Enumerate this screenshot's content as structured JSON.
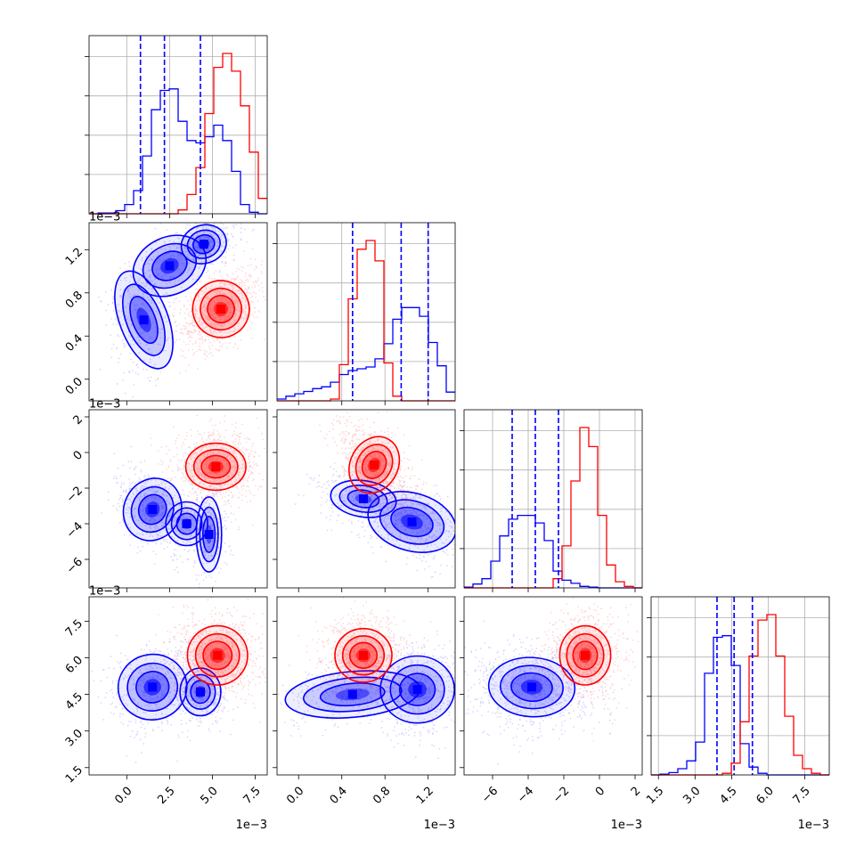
{
  "chart_data": {
    "type": "corner",
    "grid": true,
    "series": [
      {
        "color": "#0000ff",
        "quantiles_dashed": true
      },
      {
        "color": "#ff0000",
        "quantiles_dashed": false
      }
    ],
    "params": [
      {
        "ticks": [
          "0.0",
          "2.5",
          "5.0",
          "7.5"
        ],
        "tick_values": [
          0.0,
          2.5,
          5.0,
          7.5
        ],
        "range": [
          -2.2,
          8.2
        ],
        "offset": "1e−3"
      },
      {
        "ticks": [
          "0.0",
          "0.4",
          "0.8",
          "1.2"
        ],
        "tick_values": [
          0.0,
          0.4,
          0.8,
          1.2
        ],
        "range": [
          -0.2,
          1.45
        ],
        "offset": "1e−3"
      },
      {
        "ticks": [
          "−6",
          "−4",
          "−2",
          "0",
          "2"
        ],
        "tick_values": [
          -6,
          -4,
          -2,
          0,
          2
        ],
        "range": [
          -7.6,
          2.4
        ],
        "offset": "1e−3"
      },
      {
        "ticks": [
          "1.5",
          "3.0",
          "4.5",
          "6.0",
          "7.5"
        ],
        "tick_values": [
          1.5,
          3.0,
          4.5,
          6.0,
          7.5
        ],
        "range": [
          1.2,
          8.5
        ],
        "offset": "1e−3"
      }
    ],
    "marginals": [
      {
        "param": 0,
        "blue": {
          "edges_start": -2.2,
          "bin": 0.52,
          "counts": [
            0,
            1,
            1,
            4,
            12,
            30,
            75,
            135,
            160,
            162,
            120,
            95,
            92,
            100,
            115,
            95,
            55,
            12,
            2,
            0
          ]
        },
        "red": {
          "edges_start": -2.2,
          "bin": 0.52,
          "counts": [
            0,
            0,
            0,
            0,
            0,
            0,
            0,
            0,
            0,
            0,
            5,
            25,
            60,
            130,
            190,
            208,
            185,
            140,
            80,
            20
          ]
        },
        "blue_quantiles": [
          0.8,
          2.2,
          4.3
        ]
      },
      {
        "param": 1,
        "blue": {
          "edges_start": -0.2,
          "bin": 0.0825,
          "counts": [
            3,
            8,
            12,
            16,
            21,
            24,
            32,
            45,
            52,
            55,
            58,
            72,
            98,
            140,
            160,
            160,
            145,
            100,
            60,
            15
          ]
        },
        "red": {
          "edges_start": -0.2,
          "bin": 0.0825,
          "counts": [
            0,
            0,
            0,
            0,
            0,
            0,
            3,
            62,
            175,
            260,
            275,
            240,
            65,
            8,
            0,
            0,
            0,
            0,
            0,
            0
          ]
        },
        "blue_quantiles": [
          0.5,
          0.95,
          1.2
        ]
      },
      {
        "param": 2,
        "blue": {
          "edges_start": -7.6,
          "bin": 0.5,
          "counts": [
            1,
            5,
            12,
            35,
            68,
            90,
            95,
            95,
            85,
            62,
            22,
            10,
            6,
            2,
            1,
            0,
            0,
            0,
            0,
            0
          ]
        },
        "red": {
          "edges_start": -7.6,
          "bin": 0.5,
          "counts": [
            0,
            0,
            0,
            0,
            0,
            0,
            0,
            0,
            0,
            0,
            12,
            55,
            140,
            210,
            185,
            95,
            30,
            8,
            2,
            0
          ]
        },
        "blue_quantiles": [
          -4.9,
          -3.6,
          -2.3
        ]
      },
      {
        "param": 3,
        "blue": {
          "edges_start": 1.2,
          "bin": 0.365,
          "counts": [
            0,
            1,
            3,
            8,
            18,
            42,
            130,
            176,
            178,
            140,
            40,
            10,
            2,
            0,
            0,
            0,
            0,
            0,
            0,
            0
          ]
        },
        "red": {
          "edges_start": 1.2,
          "bin": 0.365,
          "counts": [
            0,
            0,
            0,
            0,
            0,
            0,
            0,
            0,
            2,
            15,
            68,
            152,
            198,
            205,
            152,
            75,
            25,
            8,
            2,
            0
          ]
        },
        "blue_quantiles": [
          3.9,
          4.6,
          5.35
        ]
      }
    ],
    "joint": [
      {
        "row": 1,
        "col": 0,
        "blue": [
          {
            "x": 1.0,
            "y": 0.55,
            "sx": 0.65,
            "sy": 0.22,
            "w": 0.3,
            "r": 0.2
          },
          {
            "x": 2.5,
            "y": 1.05,
            "sx": 1.0,
            "sy": 0.12,
            "w": 0.35,
            "r": 0.7
          },
          {
            "x": 4.5,
            "y": 1.25,
            "sx": 0.6,
            "sy": 0.08,
            "w": 0.35,
            "r": 0.4
          }
        ],
        "red": [
          {
            "x": 5.5,
            "y": 0.65,
            "sx": 0.75,
            "sy": 0.12,
            "w": 1.0,
            "r": 0.5
          }
        ]
      },
      {
        "row": 2,
        "col": 0,
        "blue": [
          {
            "x": 1.5,
            "y": -3.2,
            "sx": 0.7,
            "sy": 0.75,
            "w": 0.55,
            "r": -0.5
          },
          {
            "x": 3.5,
            "y": -4.0,
            "sx": 0.6,
            "sy": 0.6,
            "w": 0.2,
            "r": 0.0
          },
          {
            "x": 4.8,
            "y": -4.6,
            "sx": 0.35,
            "sy": 1.0,
            "w": 0.25,
            "r": 0.0
          }
        ],
        "red": [
          {
            "x": 5.2,
            "y": -0.8,
            "sx": 0.8,
            "sy": 0.6,
            "w": 1.0,
            "r": 0.0
          }
        ]
      },
      {
        "row": 2,
        "col": 1,
        "blue": [
          {
            "x": 0.6,
            "y": -2.6,
            "sx": 0.15,
            "sy": 0.5,
            "w": 0.3,
            "r": -0.3
          },
          {
            "x": 1.05,
            "y": -3.9,
            "sx": 0.18,
            "sy": 0.7,
            "w": 0.7,
            "r": -0.5
          }
        ],
        "red": [
          {
            "x": 0.7,
            "y": -0.7,
            "sx": 0.1,
            "sy": 0.75,
            "w": 1.0,
            "r": -0.5
          }
        ]
      },
      {
        "row": 3,
        "col": 0,
        "blue": [
          {
            "x": 1.5,
            "y": 4.8,
            "sx": 0.9,
            "sy": 0.6,
            "w": 0.55,
            "r": 0.2
          },
          {
            "x": 4.3,
            "y": 4.6,
            "sx": 0.55,
            "sy": 0.45,
            "w": 0.45,
            "r": 0.0
          }
        ],
        "red": [
          {
            "x": 5.3,
            "y": 6.1,
            "sx": 0.8,
            "sy": 0.55,
            "w": 1.0,
            "r": 0.0
          }
        ]
      },
      {
        "row": 3,
        "col": 1,
        "blue": [
          {
            "x": 0.5,
            "y": 4.5,
            "sx": 0.3,
            "sy": 0.45,
            "w": 0.35,
            "r": 0.3
          },
          {
            "x": 1.1,
            "y": 4.7,
            "sx": 0.15,
            "sy": 0.6,
            "w": 0.65,
            "r": 0.0
          }
        ],
        "red": [
          {
            "x": 0.6,
            "y": 6.1,
            "sx": 0.12,
            "sy": 0.5,
            "w": 1.0,
            "r": 0.0
          }
        ]
      },
      {
        "row": 3,
        "col": 2,
        "blue": [
          {
            "x": -3.8,
            "y": 4.8,
            "sx": 1.1,
            "sy": 0.55,
            "w": 1.0,
            "r": -0.1
          }
        ],
        "red": [
          {
            "x": -0.8,
            "y": 6.1,
            "sx": 0.65,
            "sy": 0.55,
            "w": 1.0,
            "r": 0.0
          }
        ]
      }
    ]
  }
}
